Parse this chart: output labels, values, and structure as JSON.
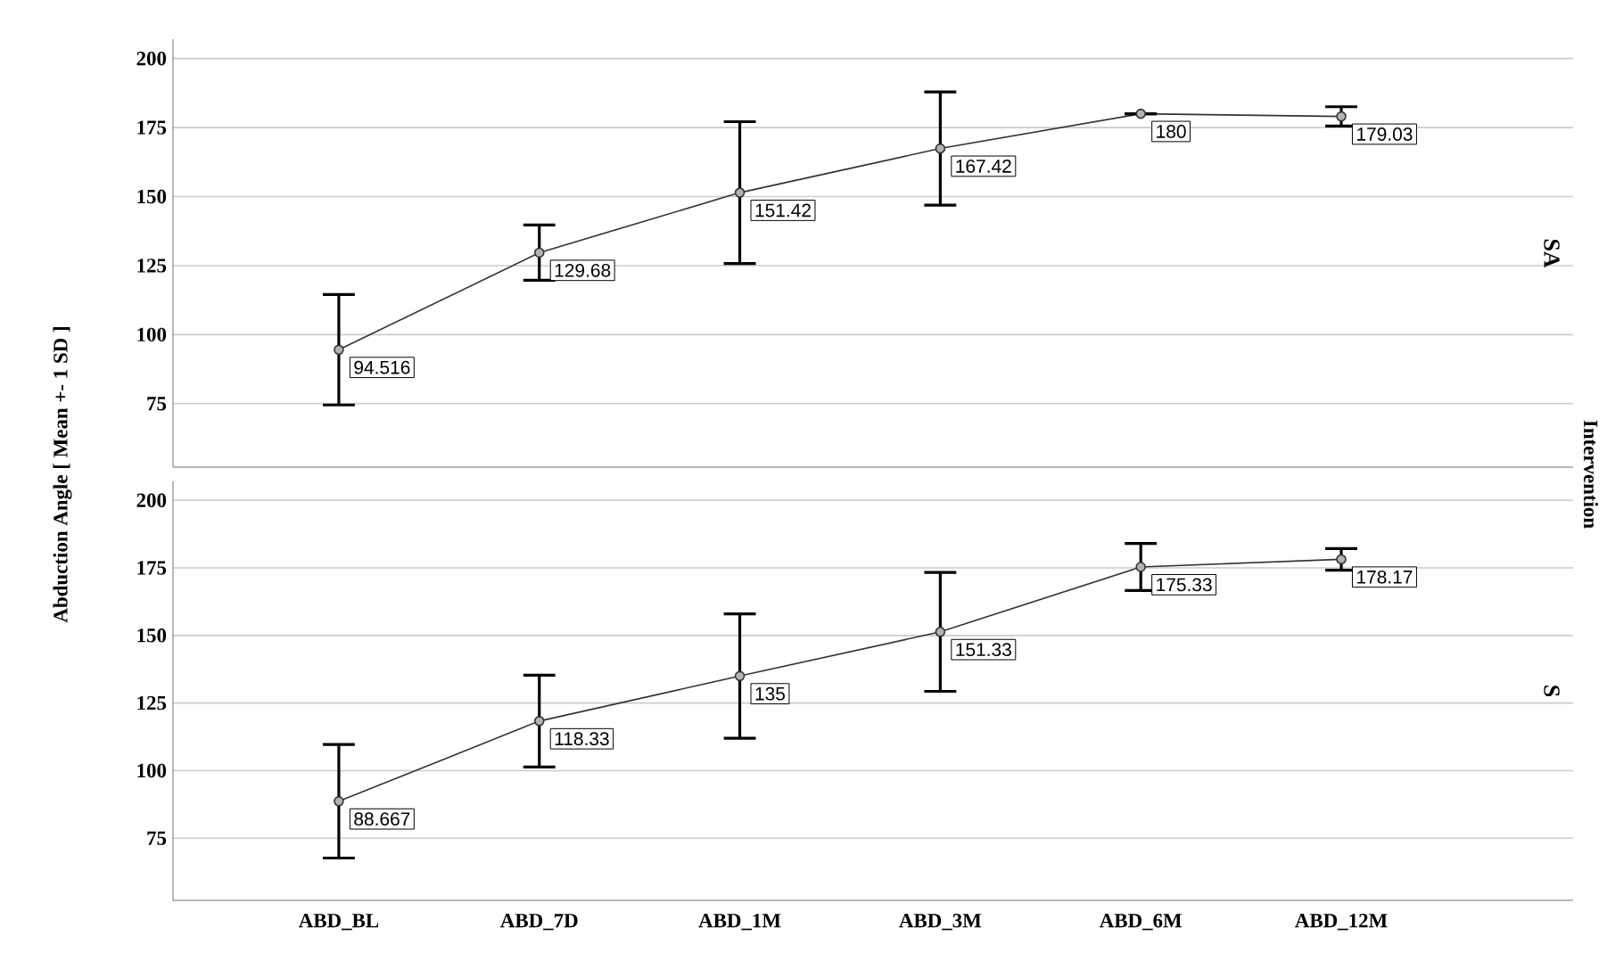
{
  "chart_data": [
    {
      "type": "line",
      "title": "SA",
      "ylabel": "Abduction Angle [ Mean +- 1 SD ]",
      "annotations": [
        "Intervention"
      ],
      "categories": [
        null,
        null,
        null,
        null,
        null,
        null
      ],
      "color": "#333333",
      "marker": "circle",
      "grid": "y",
      "data_labels": true,
      "tick_labels": "y",
      "values": [
        94.516,
        129.68,
        151.42,
        167.42,
        180,
        179.03
      ],
      "errors": [
        20,
        10,
        25.7,
        20.5,
        0,
        3.5
      ],
      "ylim": [
        52,
        207
      ],
      "yticks": [
        75,
        100,
        125,
        150,
        175,
        200
      ]
    },
    {
      "type": "line",
      "title": "S",
      "categories": [
        "ABD_BL",
        "ABD_7D",
        "ABD_1M",
        "ABD_3M",
        "ABD_6M",
        "ABD_12M"
      ],
      "color": "#333333",
      "marker": "circle",
      "grid": "y",
      "data_labels": true,
      "values": [
        88.667,
        118.33,
        135,
        151.33,
        175.33,
        178.17
      ],
      "errors": [
        21,
        17,
        23,
        22,
        8.7,
        4
      ],
      "ylim": [
        52,
        207
      ],
      "yticks": [
        75,
        100,
        125,
        150,
        175,
        200
      ]
    }
  ]
}
